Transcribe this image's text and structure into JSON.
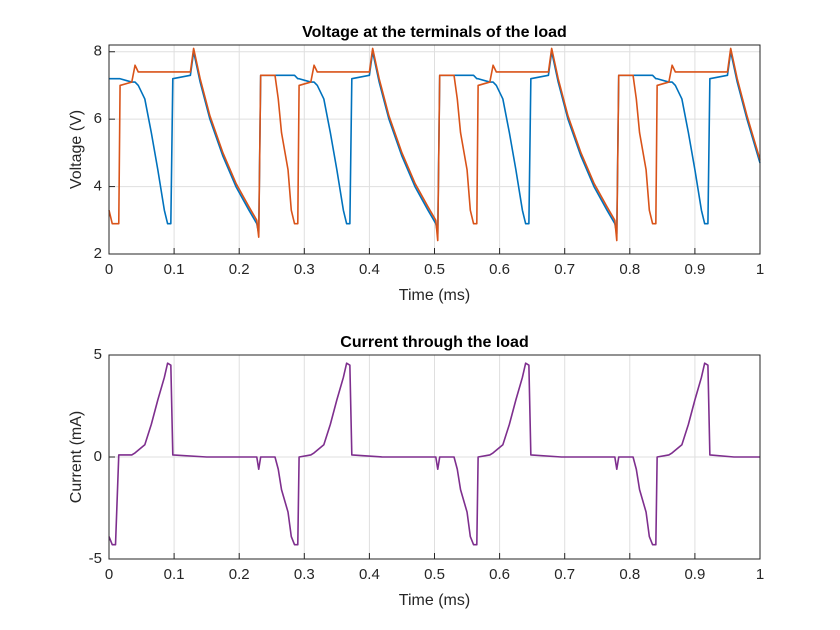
{
  "chart_data": [
    {
      "type": "line",
      "title": "Voltage at the terminals of the load",
      "xlabel": "Time (ms)",
      "ylabel": "Voltage (V)",
      "x": [
        0,
        0.005,
        0.01,
        0.015,
        0.017,
        0.035,
        0.04,
        0.045,
        0.055,
        0.065,
        0.075,
        0.085,
        0.09,
        0.095,
        0.098,
        0.125,
        0.13,
        0.14,
        0.155,
        0.175,
        0.195,
        0.215,
        0.227,
        0.23,
        0.233,
        0.255,
        0.26,
        0.265,
        0.275,
        0.28,
        0.285,
        0.29,
        0.292,
        0.31,
        0.315,
        0.32,
        0.33,
        0.34,
        0.35,
        0.36,
        0.365,
        0.37,
        0.373,
        0.4,
        0.405,
        0.415,
        0.43,
        0.45,
        0.47,
        0.49,
        0.502,
        0.505,
        0.508,
        0.53,
        0.535,
        0.54,
        0.55,
        0.555,
        0.56,
        0.565,
        0.567,
        0.585,
        0.59,
        0.595,
        0.605,
        0.615,
        0.625,
        0.635,
        0.64,
        0.645,
        0.648,
        0.675,
        0.68,
        0.69,
        0.705,
        0.725,
        0.745,
        0.765,
        0.777,
        0.78,
        0.783,
        0.805,
        0.81,
        0.815,
        0.825,
        0.83,
        0.835,
        0.84,
        0.842,
        0.86,
        0.865,
        0.87,
        0.88,
        0.89,
        0.9,
        0.91,
        0.915,
        0.92,
        0.923,
        0.95,
        0.955,
        0.965,
        0.98,
        1
      ],
      "series": [
        {
          "color": "#0072BD",
          "values": [
            7.2,
            7.2,
            7.2,
            7.2,
            7.2,
            7.1,
            7.1,
            7.0,
            6.6,
            5.6,
            4.5,
            3.3,
            2.9,
            2.9,
            7.2,
            7.3,
            8.0,
            7.1,
            6.0,
            4.9,
            4.0,
            3.3,
            2.9,
            2.6,
            7.3,
            7.3,
            7.3,
            7.3,
            7.3,
            7.3,
            7.3,
            7.2,
            7.2,
            7.1,
            7.1,
            7.0,
            6.6,
            5.6,
            4.5,
            3.3,
            2.9,
            2.9,
            7.2,
            7.3,
            8.0,
            7.1,
            6.0,
            4.9,
            4.0,
            3.3,
            2.9,
            2.6,
            7.3,
            7.3,
            7.3,
            7.3,
            7.3,
            7.3,
            7.3,
            7.2,
            7.2,
            7.1,
            7.1,
            7.0,
            6.6,
            5.6,
            4.5,
            3.3,
            2.9,
            2.9,
            7.2,
            7.3,
            8.0,
            7.1,
            6.0,
            4.9,
            4.0,
            3.3,
            2.9,
            2.6,
            7.3,
            7.3,
            7.3,
            7.3,
            7.3,
            7.3,
            7.3,
            7.2,
            7.2,
            7.1,
            7.1,
            7.0,
            6.6,
            5.6,
            4.5,
            3.3,
            2.9,
            2.9,
            7.2,
            7.3,
            8.0,
            7.1,
            6.0,
            4.7
          ]
        },
        {
          "color": "#D95319",
          "values": [
            3.3,
            2.9,
            2.9,
            2.9,
            7.0,
            7.1,
            7.6,
            7.4,
            7.4,
            7.4,
            7.4,
            7.4,
            7.4,
            7.4,
            7.4,
            7.4,
            8.1,
            7.2,
            6.1,
            5.0,
            4.1,
            3.4,
            3.0,
            2.5,
            7.3,
            7.3,
            6.6,
            5.6,
            4.5,
            3.3,
            2.9,
            2.9,
            7.0,
            7.1,
            7.6,
            7.4,
            7.4,
            7.4,
            7.4,
            7.4,
            7.4,
            7.4,
            7.4,
            7.4,
            8.1,
            7.2,
            6.1,
            5.0,
            4.1,
            3.4,
            3.0,
            2.4,
            7.3,
            7.3,
            6.6,
            5.6,
            4.5,
            3.3,
            2.9,
            2.9,
            7.0,
            7.1,
            7.6,
            7.4,
            7.4,
            7.4,
            7.4,
            7.4,
            7.4,
            7.4,
            7.4,
            7.4,
            8.1,
            7.2,
            6.1,
            5.0,
            4.1,
            3.4,
            3.0,
            2.4,
            7.3,
            7.3,
            6.6,
            5.6,
            4.5,
            3.3,
            2.9,
            2.9,
            7.0,
            7.1,
            7.6,
            7.4,
            7.4,
            7.4,
            7.4,
            7.4,
            7.4,
            7.4,
            7.4,
            7.4,
            8.1,
            7.2,
            6.1,
            4.8
          ]
        }
      ],
      "xlim": [
        0,
        1
      ],
      "ylim": [
        2,
        8.2
      ],
      "xticks": [
        0,
        0.1,
        0.2,
        0.3,
        0.4,
        0.5,
        0.6,
        0.7,
        0.8,
        0.9,
        1
      ],
      "yticks": [
        2,
        4,
        6,
        8
      ],
      "grid": true
    },
    {
      "type": "line",
      "title": "Current through the load",
      "xlabel": "Time (ms)",
      "ylabel": "Current (mA)",
      "x": [
        0,
        0.005,
        0.01,
        0.015,
        0.035,
        0.04,
        0.055,
        0.065,
        0.075,
        0.085,
        0.09,
        0.095,
        0.098,
        0.15,
        0.2,
        0.227,
        0.23,
        0.233,
        0.255,
        0.26,
        0.265,
        0.275,
        0.28,
        0.285,
        0.29,
        0.292,
        0.31,
        0.315,
        0.33,
        0.34,
        0.35,
        0.36,
        0.365,
        0.37,
        0.373,
        0.42,
        0.47,
        0.502,
        0.505,
        0.508,
        0.53,
        0.535,
        0.54,
        0.55,
        0.555,
        0.56,
        0.565,
        0.567,
        0.585,
        0.59,
        0.605,
        0.615,
        0.625,
        0.635,
        0.64,
        0.645,
        0.648,
        0.695,
        0.745,
        0.777,
        0.78,
        0.783,
        0.805,
        0.81,
        0.815,
        0.825,
        0.83,
        0.835,
        0.84,
        0.842,
        0.86,
        0.865,
        0.88,
        0.89,
        0.9,
        0.91,
        0.915,
        0.92,
        0.923,
        0.96,
        1
      ],
      "series": [
        {
          "color": "#7E2F8E",
          "values": [
            -3.9,
            -4.3,
            -4.3,
            0.1,
            0.1,
            0.2,
            0.6,
            1.6,
            2.8,
            3.9,
            4.6,
            4.5,
            0.1,
            0,
            0,
            0,
            -0.6,
            0,
            0,
            -0.6,
            -1.6,
            -2.7,
            -3.9,
            -4.3,
            -4.3,
            0,
            0.1,
            0.2,
            0.6,
            1.6,
            2.8,
            3.9,
            4.6,
            4.5,
            0.1,
            0,
            0,
            0,
            -0.6,
            0,
            0,
            -0.6,
            -1.6,
            -2.7,
            -3.9,
            -4.3,
            -4.3,
            0,
            0.1,
            0.2,
            0.6,
            1.6,
            2.8,
            3.9,
            4.6,
            4.5,
            0.1,
            0,
            0,
            0,
            -0.6,
            0,
            0,
            -0.6,
            -1.6,
            -2.7,
            -3.9,
            -4.3,
            -4.3,
            0,
            0.1,
            0.2,
            0.6,
            1.6,
            2.8,
            3.9,
            4.6,
            4.5,
            0.1,
            0,
            0
          ]
        }
      ],
      "xlim": [
        0,
        1
      ],
      "ylim": [
        -5,
        5
      ],
      "xticks": [
        0,
        0.1,
        0.2,
        0.3,
        0.4,
        0.5,
        0.6,
        0.7,
        0.8,
        0.9,
        1
      ],
      "yticks": [
        -5,
        0,
        5
      ],
      "grid": true
    }
  ]
}
